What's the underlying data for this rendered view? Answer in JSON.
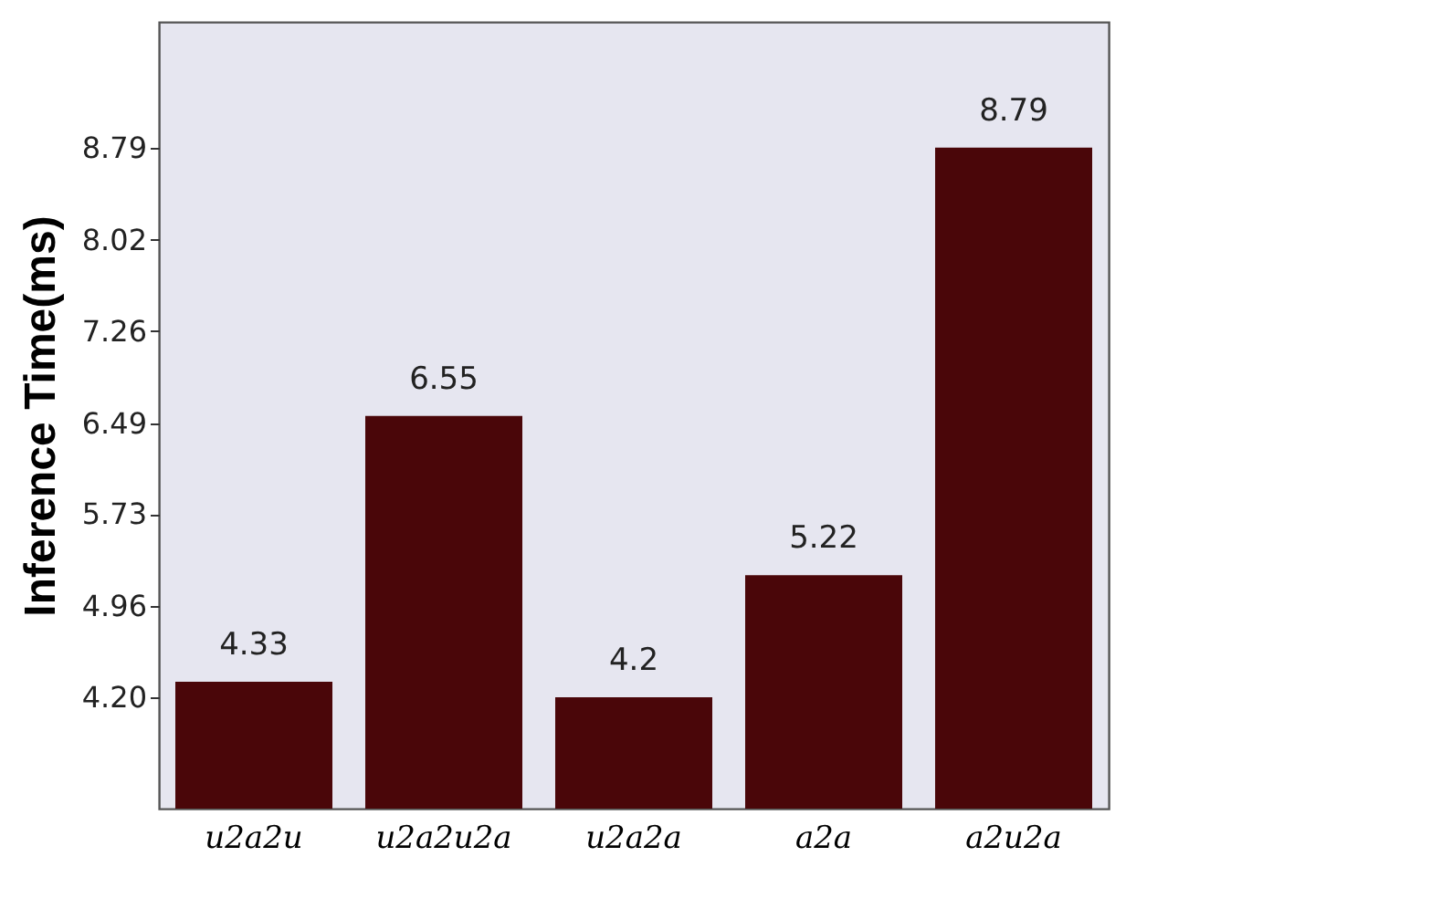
{
  "chart_data": {
    "type": "bar",
    "ylabel": "Inference Time(ms)",
    "categories": [
      "u2a2u",
      "u2a2u2a",
      "u2a2a",
      "a2a",
      "a2u2a"
    ],
    "values": [
      4.33,
      6.55,
      4.2,
      5.22,
      8.79
    ],
    "color": "#4a0609",
    "ylim": [
      3.27,
      9.84
    ],
    "yticks": [
      {
        "value": 4.2,
        "label": "4.20"
      },
      4.96,
      5.73,
      6.49,
      7.26,
      8.02,
      8.79
    ],
    "data_labels": true,
    "grid": false
  }
}
